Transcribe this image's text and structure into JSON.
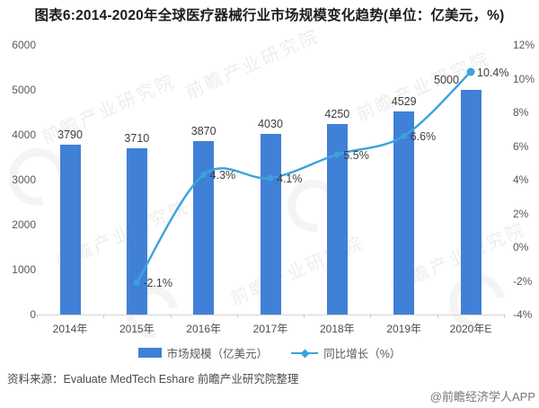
{
  "title": "图表6:2014-2020年全球医疗器械行业市场规模变化趋势(单位：亿美元，%)",
  "chart_data": {
    "type": "bar+line combo",
    "categories": [
      "2014年",
      "2015年",
      "2016年",
      "2017年",
      "2018年",
      "2019年",
      "2020年E"
    ],
    "series": [
      {
        "name": "市场规模（亿美元）",
        "type": "bar",
        "axis": "left",
        "values": [
          3790,
          3710,
          3870,
          4030,
          4250,
          4529,
          5000
        ],
        "labels": [
          "3790",
          "3710",
          "3870",
          "4030",
          "4250",
          "4529",
          "5000"
        ]
      },
      {
        "name": "同比增长（%）",
        "type": "line",
        "axis": "right",
        "values": [
          null,
          -2.1,
          4.3,
          4.1,
          5.5,
          6.6,
          10.4
        ],
        "labels": [
          null,
          "-2.1%",
          "4.3%",
          "4.1%",
          "5.5%",
          "6.6%",
          "10.4%"
        ]
      }
    ],
    "left_axis": {
      "min": 0,
      "max": 6000,
      "step": 1000,
      "ticks": [
        "0",
        "1000",
        "2000",
        "3000",
        "4000",
        "5000",
        "6000"
      ]
    },
    "right_axis": {
      "min": -4,
      "max": 12,
      "step": 2,
      "ticks": [
        "-4%",
        "-2%",
        "0%",
        "2%",
        "4%",
        "6%",
        "8%",
        "10%",
        "12%"
      ]
    },
    "grid": false,
    "legend_position": "bottom"
  },
  "legend": [
    {
      "label": "市场规模（亿美元）"
    },
    {
      "label": "同比增长（%）"
    }
  ],
  "source": "资料来源：Evaluate MedTech Eshare 前瞻产业研究院整理",
  "footer": "@前瞻经济学人APP",
  "watermark": {
    "text": "前瞻产业研究院"
  },
  "colors": {
    "bar": "#4080D6",
    "line": "#3BA3DC",
    "title_text": "#1c1c1c",
    "axis_text": "#595959",
    "value_text": "#3d3d3d",
    "baseline": "#d4d4d4"
  }
}
